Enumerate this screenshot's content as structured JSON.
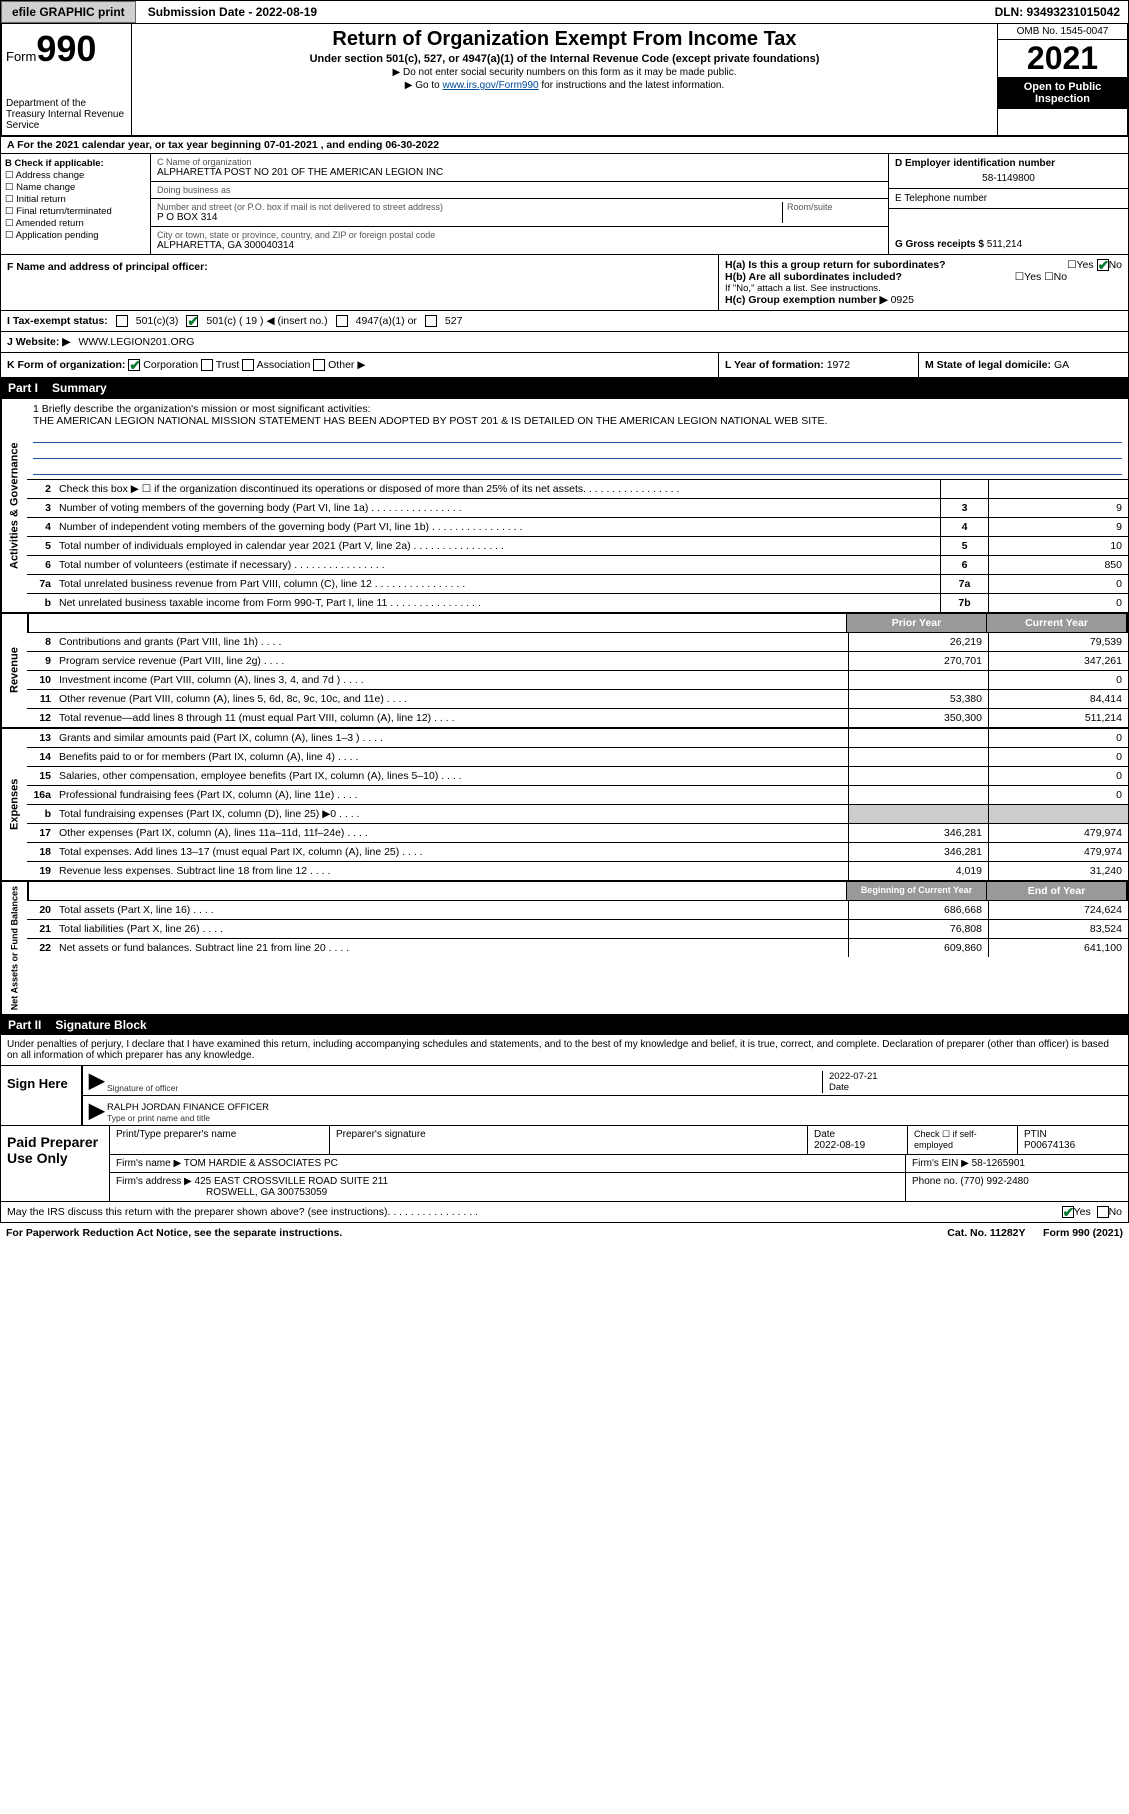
{
  "topbar": {
    "efile_btn": "efile GRAPHIC print",
    "sub_date_label": "Submission Date - 2022-08-19",
    "dln": "DLN: 93493231015042"
  },
  "header": {
    "form_label": "Form",
    "form_number": "990",
    "dept": "Department of the Treasury Internal Revenue Service",
    "title": "Return of Organization Exempt From Income Tax",
    "subtitle": "Under section 501(c), 527, or 4947(a)(1) of the Internal Revenue Code (except private foundations)",
    "note1": "▶ Do not enter social security numbers on this form as it may be made public.",
    "note2_pre": "▶ Go to ",
    "note2_link": "www.irs.gov/Form990",
    "note2_post": " for instructions and the latest information.",
    "omb": "OMB No. 1545-0047",
    "year": "2021",
    "inspect": "Open to Public Inspection"
  },
  "section_a": "A For the 2021 calendar year, or tax year beginning 07-01-2021   , and ending 06-30-2022",
  "col_b": {
    "header": "B Check if applicable:",
    "items": [
      "Address change",
      "Name change",
      "Initial return",
      "Final return/terminated",
      "Amended return",
      "Application pending"
    ]
  },
  "col_c": {
    "name_label": "C Name of organization",
    "name": "ALPHARETTA POST NO 201 OF THE AMERICAN LEGION INC",
    "dba_label": "Doing business as",
    "dba": "",
    "addr_label": "Number and street (or P.O. box if mail is not delivered to street address)",
    "room_label": "Room/suite",
    "addr": "P O BOX 314",
    "city_label": "City or town, state or province, country, and ZIP or foreign postal code",
    "city": "ALPHARETTA, GA   300040314"
  },
  "col_d": {
    "ein_label": "D Employer identification number",
    "ein": "58-1149800",
    "phone_label": "E Telephone number",
    "phone": "",
    "gross_label": "G Gross receipts $",
    "gross": "511,214"
  },
  "row_f": {
    "label": "F  Name and address of principal officer:",
    "h_a": "H(a)  Is this a group return for subordinates?",
    "h_a_yes": "Yes",
    "h_a_no": "No",
    "h_b": "H(b)  Are all subordinates included?",
    "h_b_yes": "Yes",
    "h_b_no": "No",
    "h_b_note": "If \"No,\" attach a list. See instructions.",
    "h_c": "H(c)  Group exemption number ▶",
    "h_c_val": "0925"
  },
  "row_i": {
    "label": "I   Tax-exempt status:",
    "c3": "501(c)(3)",
    "c": "501(c) ( 19 ) ◀ (insert no.)",
    "a1": "4947(a)(1) or",
    "527": "527"
  },
  "row_j": {
    "label": "J   Website: ▶",
    "val": "WWW.LEGION201.ORG"
  },
  "row_k": {
    "label": "K Form of organization:",
    "corp": "Corporation",
    "trust": "Trust",
    "assoc": "Association",
    "other": "Other ▶",
    "l_label": "L Year of formation:",
    "l_val": "1972",
    "m_label": "M State of legal domicile:",
    "m_val": "GA"
  },
  "part1": {
    "label": "Part I",
    "title": "Summary"
  },
  "mission": {
    "label": "1   Briefly describe the organization's mission or most significant activities:",
    "text": "THE AMERICAN LEGION NATIONAL MISSION STATEMENT HAS BEEN ADOPTED BY POST 201 & IS DETAILED ON THE AMERICAN LEGION NATIONAL WEB SITE."
  },
  "gov_rows": [
    {
      "n": "2",
      "t": "Check this box ▶ ☐  if the organization discontinued its operations or disposed of more than 25% of its net assets.",
      "box": "",
      "v": ""
    },
    {
      "n": "3",
      "t": "Number of voting members of the governing body (Part VI, line 1a)",
      "box": "3",
      "v": "9"
    },
    {
      "n": "4",
      "t": "Number of independent voting members of the governing body (Part VI, line 1b)",
      "box": "4",
      "v": "9"
    },
    {
      "n": "5",
      "t": "Total number of individuals employed in calendar year 2021 (Part V, line 2a)",
      "box": "5",
      "v": "10"
    },
    {
      "n": "6",
      "t": "Total number of volunteers (estimate if necessary)",
      "box": "6",
      "v": "850"
    },
    {
      "n": "7a",
      "t": "Total unrelated business revenue from Part VIII, column (C), line 12",
      "box": "7a",
      "v": "0"
    },
    {
      "n": "b",
      "t": "Net unrelated business taxable income from Form 990-T, Part I, line 11",
      "box": "7b",
      "v": "0"
    }
  ],
  "rev_hdr": {
    "py": "Prior Year",
    "cy": "Current Year"
  },
  "rev_rows": [
    {
      "n": "8",
      "t": "Contributions and grants (Part VIII, line 1h)",
      "py": "26,219",
      "cy": "79,539"
    },
    {
      "n": "9",
      "t": "Program service revenue (Part VIII, line 2g)",
      "py": "270,701",
      "cy": "347,261"
    },
    {
      "n": "10",
      "t": "Investment income (Part VIII, column (A), lines 3, 4, and 7d )",
      "py": "",
      "cy": "0"
    },
    {
      "n": "11",
      "t": "Other revenue (Part VIII, column (A), lines 5, 6d, 8c, 9c, 10c, and 11e)",
      "py": "53,380",
      "cy": "84,414"
    },
    {
      "n": "12",
      "t": "Total revenue—add lines 8 through 11 (must equal Part VIII, column (A), line 12)",
      "py": "350,300",
      "cy": "511,214"
    }
  ],
  "exp_rows": [
    {
      "n": "13",
      "t": "Grants and similar amounts paid (Part IX, column (A), lines 1–3 )",
      "py": "",
      "cy": "0"
    },
    {
      "n": "14",
      "t": "Benefits paid to or for members (Part IX, column (A), line 4)",
      "py": "",
      "cy": "0"
    },
    {
      "n": "15",
      "t": "Salaries, other compensation, employee benefits (Part IX, column (A), lines 5–10)",
      "py": "",
      "cy": "0"
    },
    {
      "n": "16a",
      "t": "Professional fundraising fees (Part IX, column (A), line 11e)",
      "py": "",
      "cy": "0"
    },
    {
      "n": "b",
      "t": "Total fundraising expenses (Part IX, column (D), line 25) ▶0",
      "py": "SHADE",
      "cy": "SHADE"
    },
    {
      "n": "17",
      "t": "Other expenses (Part IX, column (A), lines 11a–11d, 11f–24e)",
      "py": "346,281",
      "cy": "479,974"
    },
    {
      "n": "18",
      "t": "Total expenses. Add lines 13–17 (must equal Part IX, column (A), line 25)",
      "py": "346,281",
      "cy": "479,974"
    },
    {
      "n": "19",
      "t": "Revenue less expenses. Subtract line 18 from line 12",
      "py": "4,019",
      "cy": "31,240"
    }
  ],
  "net_hdr": {
    "py": "Beginning of Current Year",
    "cy": "End of Year"
  },
  "net_rows": [
    {
      "n": "20",
      "t": "Total assets (Part X, line 16)",
      "py": "686,668",
      "cy": "724,624"
    },
    {
      "n": "21",
      "t": "Total liabilities (Part X, line 26)",
      "py": "76,808",
      "cy": "83,524"
    },
    {
      "n": "22",
      "t": "Net assets or fund balances. Subtract line 21 from line 20",
      "py": "609,860",
      "cy": "641,100"
    }
  ],
  "tabs": {
    "gov": "Activities & Governance",
    "rev": "Revenue",
    "exp": "Expenses",
    "net": "Net Assets or Fund Balances"
  },
  "part2": {
    "label": "Part II",
    "title": "Signature Block"
  },
  "sig_intro": "Under penalties of perjury, I declare that I have examined this return, including accompanying schedules and statements, and to the best of my knowledge and belief, it is true, correct, and complete. Declaration of preparer (other than officer) is based on all information of which preparer has any knowledge.",
  "sign": {
    "here": "Sign Here",
    "sig_label": "Signature of officer",
    "date_label": "Date",
    "date": "2022-07-21",
    "name": "RALPH JORDAN FINANCE OFFICER",
    "name_label": "Type or print name and title"
  },
  "prep": {
    "title": "Paid Preparer Use Only",
    "h_name": "Print/Type preparer's name",
    "h_sig": "Preparer's signature",
    "h_date": "Date",
    "h_date_v": "2022-08-19",
    "h_chk": "Check ☐ if self-employed",
    "h_ptin": "PTIN",
    "ptin": "P00674136",
    "firm_label": "Firm's name    ▶",
    "firm": "TOM HARDIE & ASSOCIATES PC",
    "ein_label": "Firm's EIN ▶",
    "ein": "58-1265901",
    "addr_label": "Firm's address ▶",
    "addr1": "425 EAST CROSSVILLE ROAD SUITE 211",
    "addr2": "ROSWELL, GA  300753059",
    "phone_label": "Phone no.",
    "phone": "(770) 992-2480"
  },
  "discuss": {
    "q": "May the IRS discuss this return with the preparer shown above? (see instructions)",
    "yes": "Yes",
    "no": "No"
  },
  "footer": {
    "pra": "For Paperwork Reduction Act Notice, see the separate instructions.",
    "cat": "Cat. No. 11282Y",
    "form": "Form 990 (2021)"
  }
}
